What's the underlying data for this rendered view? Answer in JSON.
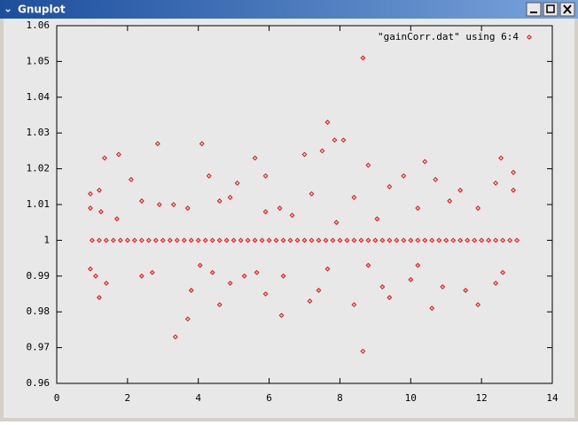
{
  "window": {
    "title": "Gnuplot"
  },
  "chart_data": {
    "type": "scatter",
    "xlim": [
      0,
      14
    ],
    "xticks": [
      0,
      2,
      4,
      6,
      8,
      10,
      12,
      14
    ],
    "ylim": [
      0.96,
      1.06
    ],
    "yticks": [
      0.96,
      0.97,
      0.98,
      0.99,
      1,
      1.01,
      1.02,
      1.03,
      1.04,
      1.05,
      1.06
    ],
    "legend": "top-right",
    "series": [
      {
        "name": "\"gainCorr.dat\" using 6:4",
        "color": "#ff0000",
        "x": [
          1.0,
          1.2,
          1.4,
          1.6,
          1.8,
          2.0,
          2.2,
          2.4,
          2.6,
          2.8,
          3.0,
          3.2,
          3.4,
          3.6,
          3.8,
          4.0,
          4.2,
          4.4,
          4.6,
          4.8,
          5.0,
          5.2,
          5.4,
          5.6,
          5.8,
          6.0,
          6.2,
          6.4,
          6.6,
          6.8,
          7.0,
          7.2,
          7.4,
          7.6,
          7.8,
          8.0,
          8.2,
          8.4,
          8.6,
          8.8,
          9.0,
          9.2,
          9.4,
          9.6,
          9.8,
          10.0,
          10.2,
          10.4,
          10.6,
          10.8,
          11.0,
          11.2,
          11.4,
          11.6,
          11.8,
          12.0,
          12.2,
          12.4,
          12.6,
          12.8,
          13.0,
          0.95,
          0.95,
          1.2,
          1.35,
          1.25,
          1.7,
          1.75,
          2.1,
          2.85,
          2.9,
          3.3,
          4.1,
          4.3,
          4.6,
          5.1,
          5.6,
          5.9,
          5.9,
          6.3,
          7.0,
          7.5,
          7.65,
          7.85,
          8.1,
          8.65,
          8.8,
          9.05,
          9.4,
          9.8,
          10.4,
          10.7,
          11.4,
          11.9,
          12.55,
          12.9,
          12.9,
          12.4,
          10.2,
          7.2,
          6.65,
          4.9,
          3.7,
          2.4,
          8.4,
          11.1,
          7.9,
          0.95,
          1.1,
          1.2,
          1.4,
          2.4,
          2.7,
          3.35,
          3.7,
          3.8,
          4.05,
          4.4,
          4.6,
          5.3,
          5.9,
          6.35,
          6.4,
          7.15,
          7.65,
          8.4,
          8.65,
          8.8,
          9.4,
          10.2,
          10.6,
          10.9,
          11.55,
          11.9,
          12.4,
          12.6,
          9.2,
          4.9,
          7.4,
          10.0,
          5.65
        ],
        "values": [
          1,
          1,
          1,
          1,
          1,
          1,
          1,
          1,
          1,
          1,
          1,
          1,
          1,
          1,
          1,
          1,
          1,
          1,
          1,
          1,
          1,
          1,
          1,
          1,
          1,
          1,
          1,
          1,
          1,
          1,
          1,
          1,
          1,
          1,
          1,
          1,
          1,
          1,
          1,
          1,
          1,
          1,
          1,
          1,
          1,
          1,
          1,
          1,
          1,
          1,
          1,
          1,
          1,
          1,
          1,
          1,
          1,
          1,
          1,
          1,
          1,
          1.013,
          1.009,
          1.014,
          1.023,
          1.008,
          1.006,
          1.024,
          1.017,
          1.027,
          1.01,
          1.01,
          1.027,
          1.018,
          1.011,
          1.016,
          1.023,
          1.018,
          1.008,
          1.009,
          1.024,
          1.025,
          1.033,
          1.028,
          1.028,
          1.051,
          1.021,
          1.006,
          1.015,
          1.018,
          1.022,
          1.017,
          1.014,
          1.009,
          1.023,
          1.019,
          1.014,
          1.016,
          1.009,
          1.013,
          1.007,
          1.012,
          1.009,
          1.011,
          1.012,
          1.011,
          1.005,
          0.992,
          0.99,
          0.984,
          0.988,
          0.99,
          0.991,
          0.973,
          0.978,
          0.986,
          0.993,
          0.991,
          0.982,
          0.99,
          0.985,
          0.979,
          0.99,
          0.983,
          0.992,
          0.982,
          0.969,
          0.993,
          0.984,
          0.993,
          0.981,
          0.987,
          0.986,
          0.982,
          0.988,
          0.991,
          0.987,
          0.988,
          0.986,
          0.989,
          0.991
        ]
      }
    ]
  }
}
